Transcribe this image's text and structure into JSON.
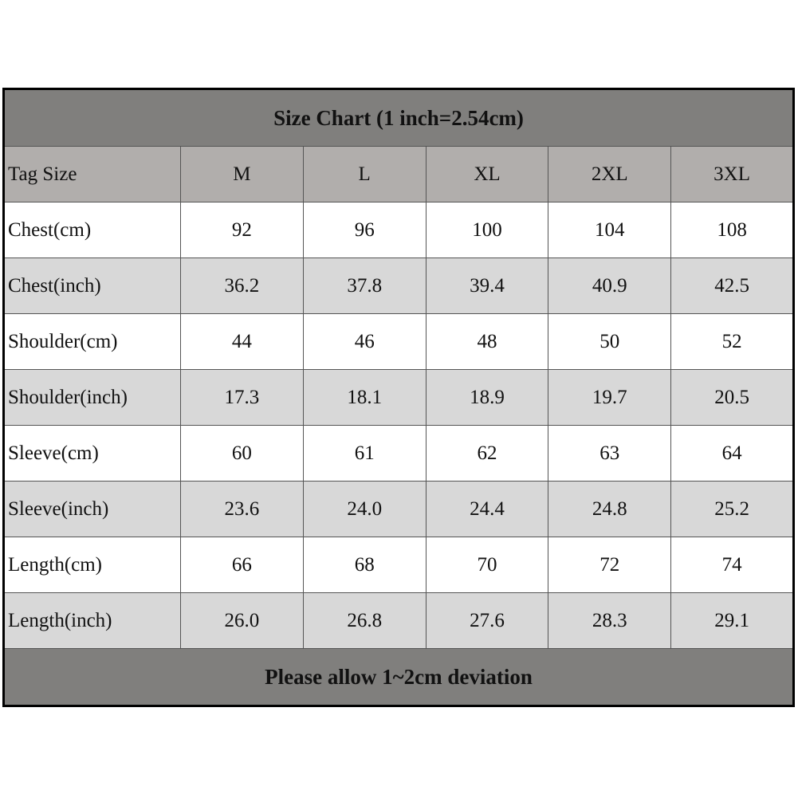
{
  "title": "Size Chart (1 inch=2.54cm)",
  "table": {
    "header": [
      "Tag Size",
      "M",
      "L",
      "XL",
      "2XL",
      "3XL"
    ],
    "rows": [
      [
        "Chest(cm)",
        "92",
        "96",
        "100",
        "104",
        "108"
      ],
      [
        "Chest(inch)",
        "36.2",
        "37.8",
        "39.4",
        "40.9",
        "42.5"
      ],
      [
        "Shoulder(cm)",
        "44",
        "46",
        "48",
        "50",
        "52"
      ],
      [
        "Shoulder(inch)",
        "17.3",
        "18.1",
        "18.9",
        "19.7",
        "20.5"
      ],
      [
        "Sleeve(cm)",
        "60",
        "61",
        "62",
        "63",
        "64"
      ],
      [
        "Sleeve(inch)",
        "23.6",
        "24.0",
        "24.4",
        "24.8",
        "25.2"
      ],
      [
        "Length(cm)",
        "66",
        "68",
        "70",
        "72",
        "74"
      ],
      [
        "Length(inch)",
        "26.0",
        "26.8",
        "27.6",
        "28.3",
        "29.1"
      ]
    ]
  },
  "footer": "Please allow 1~2cm deviation"
}
